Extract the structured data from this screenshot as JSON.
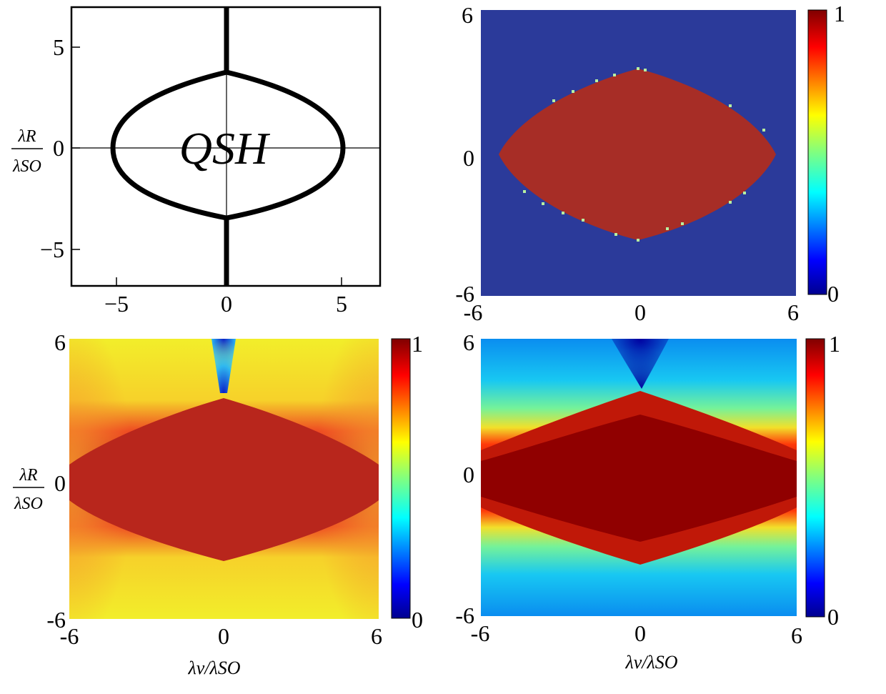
{
  "chart_data": [
    {
      "id": "phase-diagram",
      "type": "line",
      "title": "",
      "region_label": "QSH",
      "ylabel_num": "λR",
      "ylabel_den": "λSO",
      "xlabel": "",
      "xlim": [
        -6.8,
        6.8
      ],
      "ylim": [
        -6.8,
        7
      ],
      "xticks": [
        "−5",
        "0",
        "5"
      ],
      "yticks": [
        "5",
        "0",
        "−5"
      ],
      "boundary": {
        "x_extent": [
          -5,
          5
        ],
        "y_extent": [
          -3.6,
          3.6
        ],
        "vertical_line_x": 0
      }
    },
    {
      "id": "heatmap-top-right",
      "type": "heatmap",
      "xlim": [
        -6,
        6
      ],
      "ylim": [
        -6,
        6
      ],
      "xticks": [
        "-6",
        "0",
        "6"
      ],
      "yticks": [
        "6",
        "0",
        "-6"
      ],
      "colorbar": {
        "min_label": "0",
        "max_label": "1",
        "range": [
          0,
          1
        ]
      },
      "inside_value": 1,
      "outside_value": 0,
      "region": {
        "x_extent": [
          -5.5,
          5.5
        ],
        "y_extent": [
          -3.8,
          3.8
        ]
      }
    },
    {
      "id": "heatmap-bottom-left",
      "type": "heatmap",
      "xlim": [
        -6,
        6
      ],
      "ylim": [
        -6,
        6
      ],
      "xticks": [
        "-6",
        "0",
        "6"
      ],
      "yticks": [
        "6",
        "0",
        "-6"
      ],
      "ylabel_num": "λR",
      "ylabel_den": "λSO",
      "xlabel": "λv/λSO",
      "colorbar": {
        "min_label": "0",
        "max_label": "1",
        "range": [
          0,
          1
        ]
      },
      "inside_value": 0.95,
      "outside_value": 0.7,
      "region": {
        "x_extent": [
          -6,
          6
        ],
        "y_extent": [
          -3.4,
          3.4
        ]
      }
    },
    {
      "id": "heatmap-bottom-right",
      "type": "heatmap",
      "xlim": [
        -6,
        6
      ],
      "ylim": [
        -6,
        6
      ],
      "xticks": [
        "-6",
        "0",
        "6"
      ],
      "yticks": [
        "6",
        "0",
        "-6"
      ],
      "xlabel": "λv/λSO",
      "colorbar": {
        "min_label": "0",
        "max_label": "1",
        "range": [
          0,
          1
        ]
      },
      "inside_value": 1,
      "outside_value": 0.3,
      "region": {
        "x_extent": [
          -6,
          6
        ],
        "y_extent": [
          -3.3,
          3.3
        ]
      }
    }
  ],
  "colors": {
    "jet": [
      "#00008f",
      "#0000ff",
      "#0080ff",
      "#00ffff",
      "#80ff80",
      "#ffff00",
      "#ff8000",
      "#ff0000",
      "#800000"
    ],
    "deep_blue": "#2b3a9a",
    "red_region": "#a72d26"
  }
}
